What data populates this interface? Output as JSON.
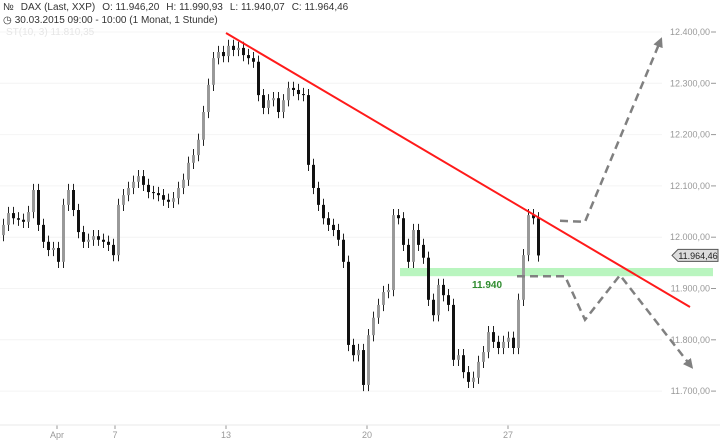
{
  "header": {
    "instrument": "DAX (Last, XXP)",
    "open": "O: 11.946,20",
    "high": "H: 11.990,93",
    "low": "L: 11.940,07",
    "close": "C: 11.964,46",
    "period": "30.03.2015 09:00 - 10:00 (1 Monat, 1 Stunde)",
    "indicator": "ST(10, 3)  11.810,35",
    "icons": [
      "candlestick-icon",
      "clock-icon"
    ]
  },
  "chart_data": {
    "type": "candlestick",
    "title": "",
    "ylim": [
      11640,
      12450
    ],
    "yticks": [
      12400,
      12300,
      12200,
      12100,
      12000,
      11900,
      11800,
      11700
    ],
    "ytick_labels": [
      "12.400,00",
      "12.300,00",
      "12.200,00",
      "12.100,00",
      "12.000,00",
      "11.900,00",
      "11.800,00",
      "11.700,00"
    ],
    "xticks": [
      {
        "label": "Apr",
        "index": 11
      },
      {
        "label": "7",
        "index": 22.6
      },
      {
        "label": "13",
        "index": 44.8
      },
      {
        "label": "20",
        "index": 73
      },
      {
        "label": "27",
        "index": 101.2
      }
    ],
    "closes": [
      12024,
      12047,
      12037,
      12034,
      12030,
      12049,
      12092,
      12024,
      11991,
      11975,
      11979,
      11952,
      12063,
      12092,
      12053,
      12010,
      11991,
      11995,
      12002,
      11995,
      11991,
      11985,
      11965,
      12063,
      12082,
      12096,
      12108,
      12119,
      12102,
      12088,
      12086,
      12082,
      12073,
      12069,
      12076,
      12096,
      12112,
      12145,
      12160,
      12190,
      12244,
      12297,
      12349,
      12361,
      12353,
      12373,
      12365,
      12369,
      12355,
      12349,
      12342,
      12277,
      12252,
      12267,
      12271,
      12244,
      12267,
      12291,
      12287,
      12279,
      12277,
      12141,
      12096,
      12063,
      12037,
      12024,
      12014,
      11995,
      11952,
      11790,
      11770,
      11780,
      11712,
      11809,
      11843,
      11868,
      11893,
      11897,
      12043,
      12037,
      11985,
      11952,
      12014,
      11985,
      11960,
      11878,
      11848,
      11907,
      11887,
      11868,
      11761,
      11770,
      11737,
      11718,
      11726,
      11757,
      11776,
      11815,
      11796,
      11784,
      11796,
      11804,
      11784,
      11878,
      11965,
      12043,
      12037,
      11964.46
    ],
    "last_price_label": "11.964,46",
    "colors": {
      "up": "#999999",
      "down": "#111111",
      "trendline": "#ff1a1a",
      "support": "#b9f5bf",
      "support_label": "#2e8b2e",
      "projection": "#808080"
    },
    "annotations": {
      "trendline": [
        [
          44.8,
          12398
        ],
        [
          137.6,
          11864
        ]
      ],
      "support_band": {
        "from_index": 79.6,
        "to_index": 142.2,
        "range": [
          11924,
          11940
        ],
        "label": "11.940",
        "label_index": 97
      },
      "projection_up": [
        [
          111.6,
          12032
        ],
        [
          116.6,
          12030
        ],
        [
          131.6,
          12381
        ]
      ],
      "projection_down": [
        [
          103,
          11924
        ],
        [
          112.6,
          11924
        ],
        [
          116.6,
          11839
        ],
        [
          123.6,
          11926
        ],
        [
          137.6,
          11751
        ]
      ]
    }
  }
}
